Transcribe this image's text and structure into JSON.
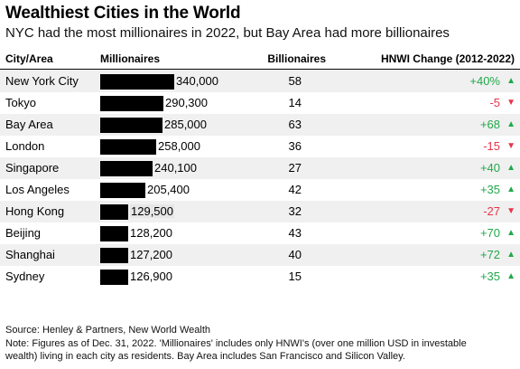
{
  "title": "Wealthiest Cities in the World",
  "subtitle": "NYC had the most millionaires in 2022, but Bay Area had more billionaires",
  "columns": {
    "city": "City/Area",
    "millionaires": "Millionaires",
    "billionaires": "Billionaires",
    "hnwi_change": "HNWI Change (2012-2022)"
  },
  "chart_data": {
    "type": "table",
    "title": "Wealthiest Cities in the World",
    "subtitle": "NYC had the most millionaires in 2022, but Bay Area had more billionaires",
    "bar_column": "Millionaires",
    "rows": [
      {
        "city": "New York City",
        "millionaires": 340000,
        "millionaires_label": "340,000",
        "billionaires": "58",
        "change": "+40%",
        "direction": "up"
      },
      {
        "city": "Tokyo",
        "millionaires": 290300,
        "millionaires_label": "290,300",
        "billionaires": "14",
        "change": "-5",
        "direction": "down"
      },
      {
        "city": "Bay Area",
        "millionaires": 285000,
        "millionaires_label": "285,000",
        "billionaires": "63",
        "change": "+68",
        "direction": "up"
      },
      {
        "city": "London",
        "millionaires": 258000,
        "millionaires_label": "258,000",
        "billionaires": "36",
        "change": "-15",
        "direction": "down"
      },
      {
        "city": "Singapore",
        "millionaires": 240100,
        "millionaires_label": "240,100",
        "billionaires": "27",
        "change": "+40",
        "direction": "up"
      },
      {
        "city": "Los Angeles",
        "millionaires": 205400,
        "millionaires_label": "205,400",
        "billionaires": "42",
        "change": "+35",
        "direction": "up"
      },
      {
        "city": "Hong Kong",
        "millionaires": 129500,
        "millionaires_label": "129,500",
        "billionaires": "32",
        "change": "-27",
        "direction": "down",
        "highlight": true
      },
      {
        "city": "Beijing",
        "millionaires": 128200,
        "millionaires_label": "128,200",
        "billionaires": "43",
        "change": "+70",
        "direction": "up"
      },
      {
        "city": "Shanghai",
        "millionaires": 127200,
        "millionaires_label": "127,200",
        "billionaires": "40",
        "change": "+72",
        "direction": "up"
      },
      {
        "city": "Sydney",
        "millionaires": 126900,
        "millionaires_label": "126,900",
        "billionaires": "15",
        "change": "+35",
        "direction": "up"
      }
    ]
  },
  "colors": {
    "bar": "#000000",
    "up": "#22a84a",
    "down": "#e8344a",
    "shade": "#f0f0f0"
  },
  "icons": {
    "up": "▲",
    "down": "▼"
  },
  "source": "Source: Henley & Partners, New World Wealth",
  "note_line1": "Note: Figures as of Dec. 31, 2022. 'Millionaires' includes only HNWI's (over one million USD in investable",
  "note_line2": "wealth) living in each city as residents. Bay Area includes San Francisco and Silicon Valley."
}
